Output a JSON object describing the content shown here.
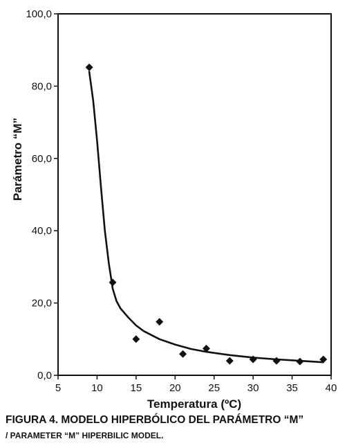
{
  "caption": {
    "line1": "FIGURA 4. MODELO HIPERBÓLICO DEL PARÁMETRO “M”",
    "line2": "/ PARAMETER “M” HIPERBILIC MODEL."
  },
  "chart_data": {
    "type": "scatter",
    "title": "",
    "xlabel": "Temperatura (ºC)",
    "ylabel": "Parámetro “M”",
    "xlim": [
      5,
      40
    ],
    "ylim": [
      0,
      100
    ],
    "x_ticks": [
      "5",
      "10",
      "15",
      "20",
      "25",
      "30",
      "35",
      "40"
    ],
    "x_tick_values": [
      5,
      10,
      15,
      20,
      25,
      30,
      35,
      40
    ],
    "y_ticks": [
      "0,0",
      "20,0",
      "40,0",
      "60,0",
      "80,0",
      "100,0"
    ],
    "y_tick_values": [
      0,
      20,
      40,
      60,
      80,
      100
    ],
    "grid": false,
    "legend": "none",
    "series": [
      {
        "kind": "points",
        "marker": "diamond",
        "color": "#111111",
        "x": [
          9,
          12,
          15,
          18,
          21,
          24,
          27,
          30,
          33,
          36,
          39
        ],
        "y": [
          85.2,
          25.7,
          10.0,
          14.8,
          5.9,
          7.4,
          4.0,
          4.4,
          4.0,
          3.8,
          4.4
        ]
      },
      {
        "kind": "curve",
        "color": "#111111",
        "x": [
          9,
          9.5,
          10,
          10.5,
          11,
          11.5,
          12,
          12.5,
          13,
          14,
          15,
          16,
          18,
          20,
          22,
          24,
          27,
          30,
          33,
          36,
          39
        ],
        "y": [
          84,
          76,
          65,
          52,
          40,
          31,
          24,
          20.5,
          18.5,
          16,
          13.8,
          12.2,
          10,
          8.5,
          7.3,
          6.5,
          5.6,
          4.9,
          4.4,
          4.0,
          3.6
        ]
      }
    ]
  }
}
